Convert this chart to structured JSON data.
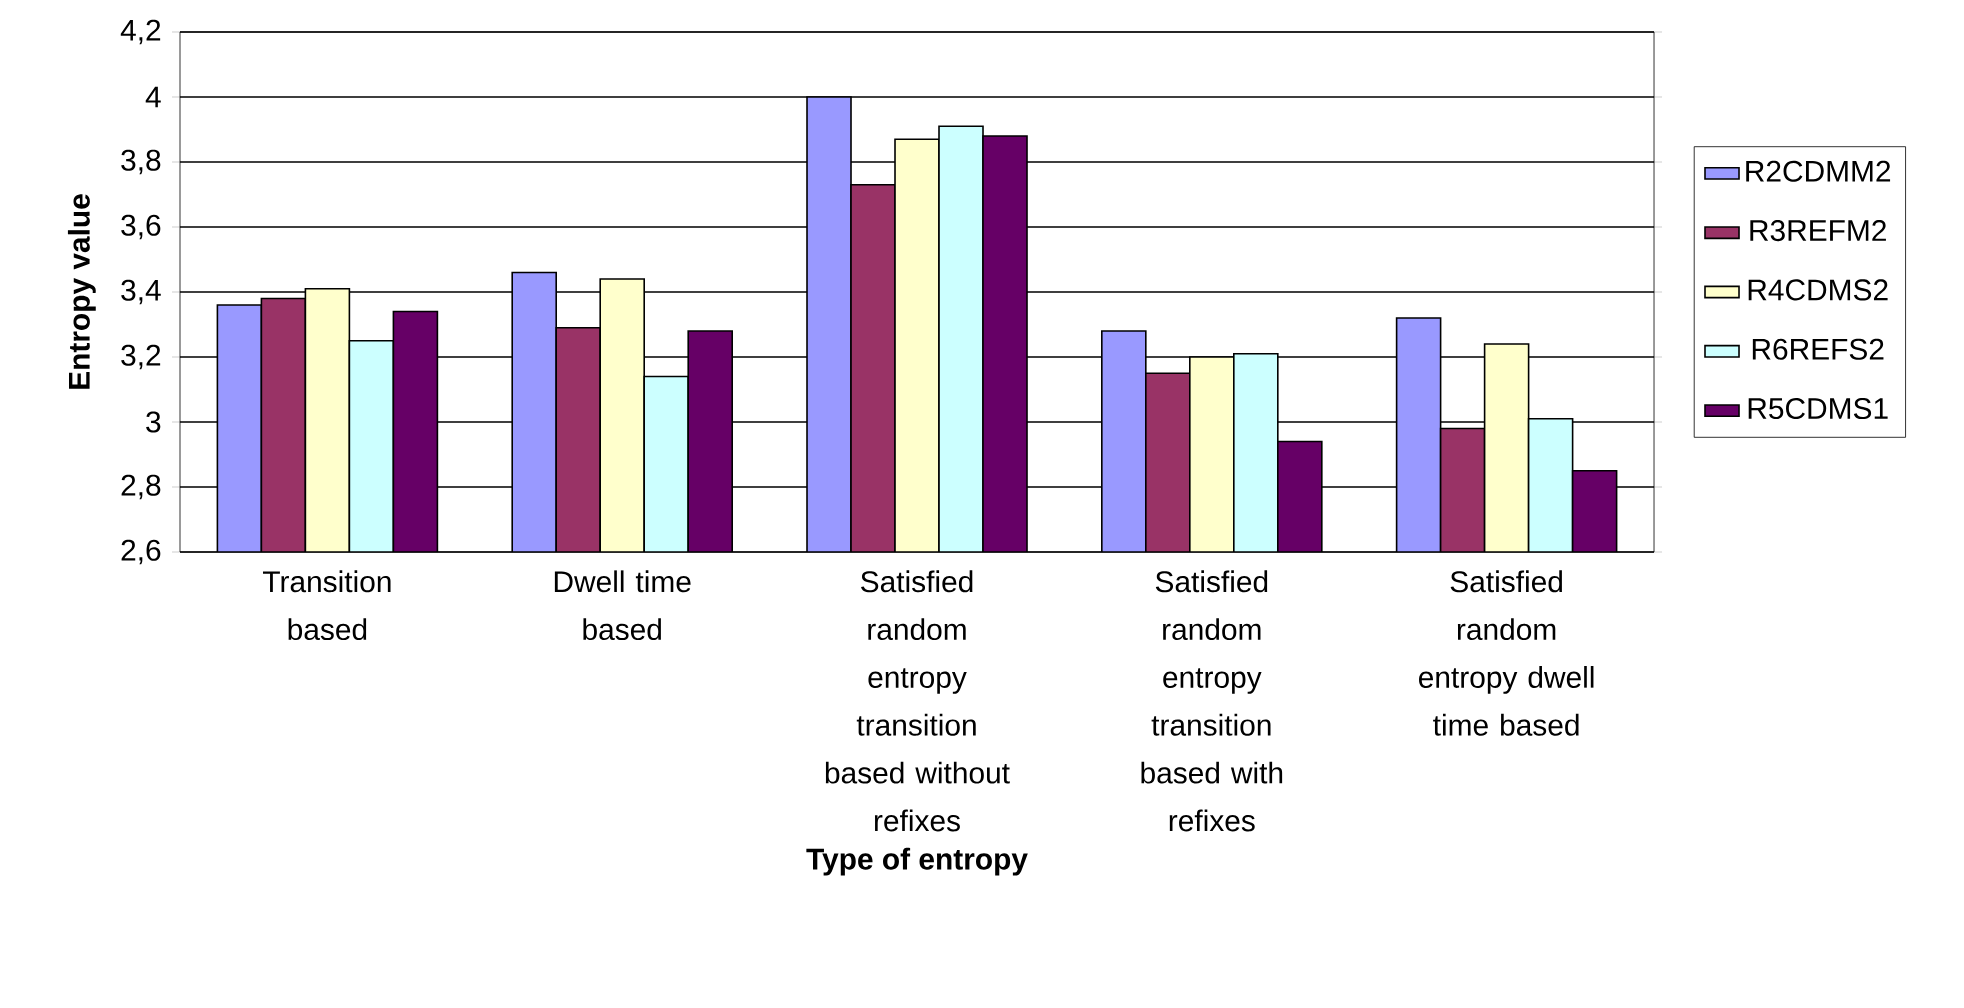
{
  "chart_data": {
    "type": "bar",
    "xlabel": "Type of entropy",
    "ylabel": "Entropy value",
    "categories": [
      "Transition based",
      "Dwell time based",
      "Satisfied random entropy transition based without refixes",
      "Satisfied random entropy transition based with refixes",
      "Satisfied random entropy dwell time based"
    ],
    "series": [
      {
        "name": "R2CDMM2",
        "color": "#9999ff",
        "values": [
          3.36,
          3.46,
          4.0,
          3.28,
          3.32
        ]
      },
      {
        "name": "R3REFM2",
        "color": "#993366",
        "values": [
          3.38,
          3.29,
          3.73,
          3.15,
          2.98
        ]
      },
      {
        "name": "R4CDMS2",
        "color": "#ffffcc",
        "values": [
          3.41,
          3.44,
          3.87,
          3.2,
          3.24
        ]
      },
      {
        "name": "R6REFS2",
        "color": "#ccffff",
        "values": [
          3.25,
          3.14,
          3.91,
          3.21,
          3.01
        ]
      },
      {
        "name": "R5CDMS1",
        "color": "#660066",
        "values": [
          3.34,
          3.28,
          3.88,
          2.94,
          2.85
        ]
      }
    ],
    "ylim": [
      2.6,
      4.2
    ],
    "yticks": [
      {
        "value": 2.6,
        "label": "2,6"
      },
      {
        "value": 2.8,
        "label": "2,8"
      },
      3,
      {
        "value": 3.2,
        "label": "3,2"
      },
      {
        "value": 3.4,
        "label": "3,4"
      },
      {
        "value": 3.6,
        "label": "3,6"
      },
      {
        "value": 3.8,
        "label": "3,8"
      },
      4,
      {
        "value": 4.2,
        "label": "4,2"
      }
    ],
    "grid": "y",
    "legend": "right"
  }
}
